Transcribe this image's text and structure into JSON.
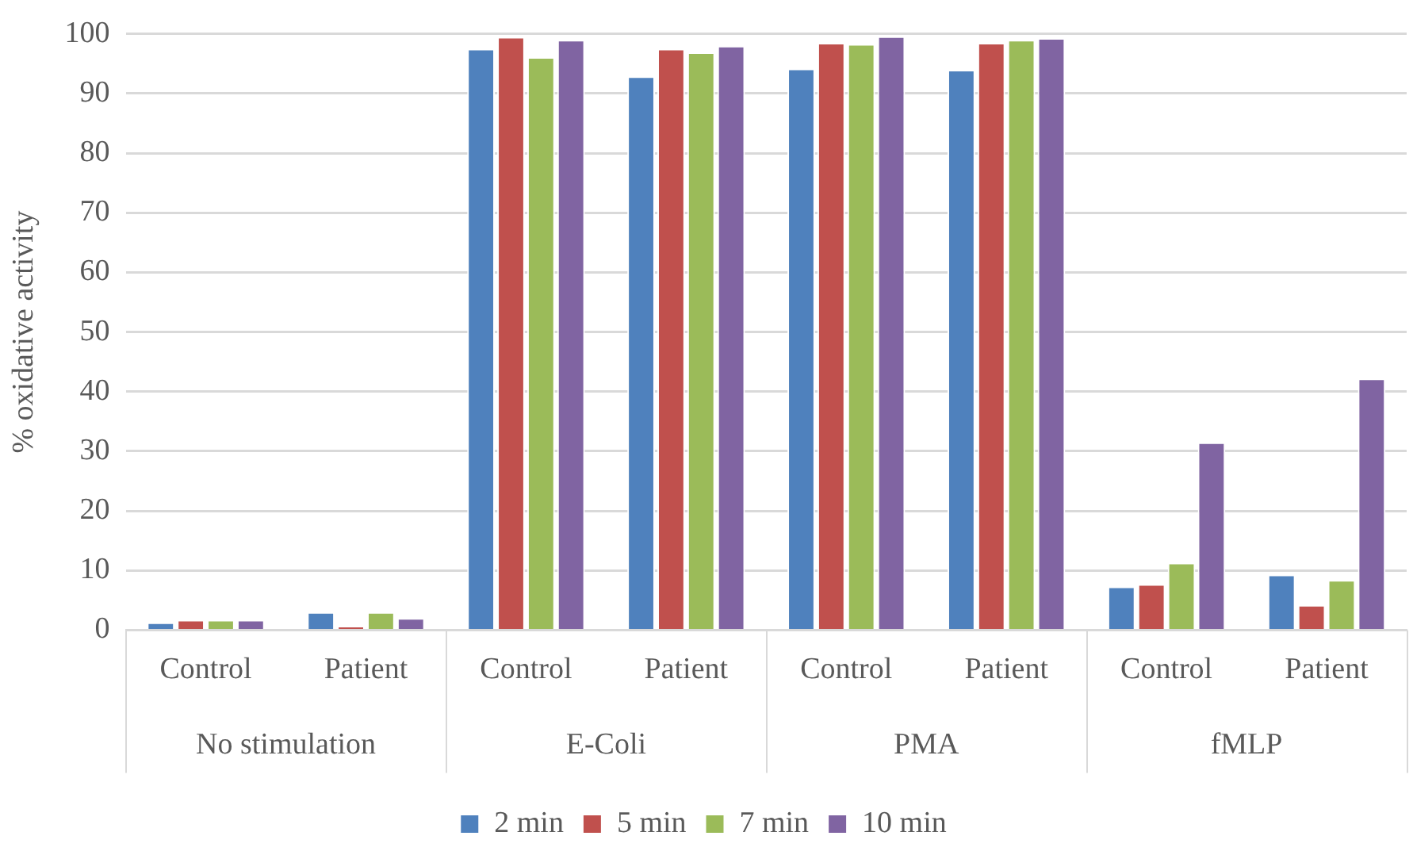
{
  "chart_data": {
    "type": "bar",
    "ylabel": "% oxidative activity",
    "categories": [
      "Control",
      "Patient",
      "Control",
      "Patient",
      "Control",
      "Patient",
      "Control",
      "Patient"
    ],
    "annotations": [
      "No stimulation",
      "E-Coli",
      "PMA",
      "fMLP"
    ],
    "series": [
      {
        "name": "2 min",
        "color": "#4f81bd",
        "values": [
          1.3,
          3.0,
          97.5,
          92.9,
          94.2,
          94.0,
          7.3,
          9.3
        ]
      },
      {
        "name": "5 min",
        "color": "#c0504d",
        "values": [
          1.7,
          0.7,
          99.5,
          97.5,
          98.5,
          98.5,
          7.7,
          4.2
        ]
      },
      {
        "name": "7 min",
        "color": "#9bbb59",
        "values": [
          1.7,
          3.0,
          96.1,
          96.9,
          98.3,
          99.0,
          11.3,
          8.4
        ]
      },
      {
        "name": "10 min",
        "color": "#8064a2",
        "values": [
          1.7,
          2.0,
          99.0,
          98.0,
          99.6,
          99.3,
          31.5,
          42.2
        ]
      }
    ],
    "ylim": [
      0,
      100
    ],
    "yticks": [
      0,
      10,
      20,
      30,
      40,
      50,
      60,
      70,
      80,
      90,
      100
    ],
    "grid": "y",
    "legend": "bottom"
  }
}
